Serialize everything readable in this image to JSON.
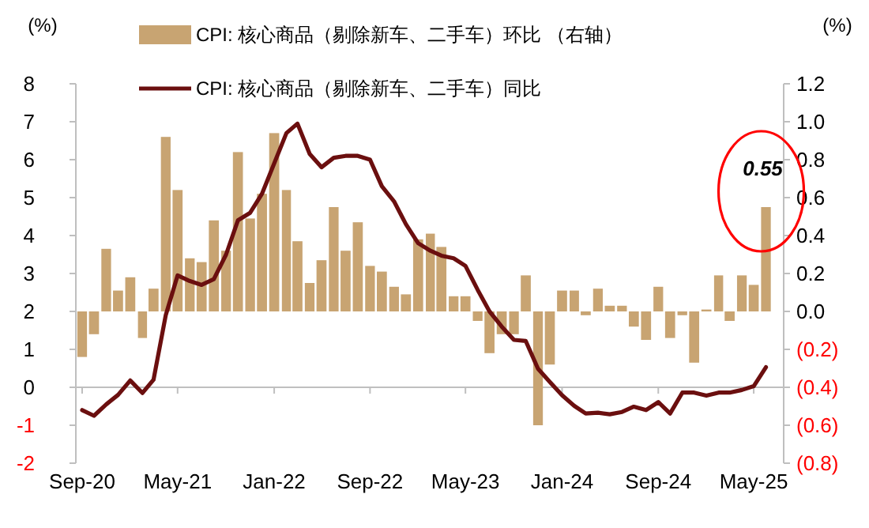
{
  "chart_data": {
    "type": "bar",
    "x": [
      "2020-09",
      "2020-10",
      "2020-11",
      "2020-12",
      "2021-01",
      "2021-02",
      "2021-03",
      "2021-04",
      "2021-05",
      "2021-06",
      "2021-07",
      "2021-08",
      "2021-09",
      "2021-10",
      "2021-11",
      "2021-12",
      "2022-01",
      "2022-02",
      "2022-03",
      "2022-04",
      "2022-05",
      "2022-06",
      "2022-07",
      "2022-08",
      "2022-09",
      "2022-10",
      "2022-11",
      "2022-12",
      "2023-01",
      "2023-02",
      "2023-03",
      "2023-04",
      "2023-05",
      "2023-06",
      "2023-07",
      "2023-08",
      "2023-09",
      "2023-10",
      "2023-11",
      "2023-12",
      "2024-01",
      "2024-02",
      "2024-03",
      "2024-04",
      "2024-05",
      "2024-06",
      "2024-07",
      "2024-08",
      "2024-09",
      "2024-10",
      "2024-11",
      "2024-12",
      "2025-01",
      "2025-02",
      "2025-03",
      "2025-04",
      "2025-05",
      "2025-06"
    ],
    "series": [
      {
        "name": "CPI: 核心商品（剔除新车、二手车）环比 （右轴）",
        "axis": "y2",
        "color": "#c8a472",
        "values": [
          -0.24,
          -0.12,
          0.33,
          0.11,
          0.18,
          -0.14,
          0.12,
          0.92,
          0.64,
          0.28,
          0.26,
          0.48,
          0.32,
          0.84,
          0.49,
          0.62,
          0.94,
          0.64,
          0.37,
          0.15,
          0.27,
          0.55,
          0.32,
          0.47,
          0.24,
          0.21,
          0.13,
          0.09,
          0.38,
          0.41,
          0.34,
          0.08,
          0.08,
          -0.05,
          -0.22,
          -0.12,
          -0.12,
          0.19,
          -0.6,
          -0.28,
          0.11,
          0.11,
          -0.02,
          0.12,
          0.03,
          0.03,
          -0.08,
          -0.15,
          0.13,
          -0.14,
          -0.02,
          -0.27,
          0.01,
          0.19,
          -0.05,
          0.19,
          0.14,
          0.55
        ]
      },
      {
        "name": "CPI: 核心商品（剔除新车、二手车）同比",
        "type": "line",
        "color": "#6b0f0f",
        "values": [
          -0.6,
          -0.75,
          -0.45,
          -0.2,
          0.18,
          -0.15,
          0.2,
          1.9,
          2.95,
          2.8,
          2.7,
          2.85,
          3.5,
          4.4,
          4.6,
          5.1,
          5.9,
          6.7,
          6.95,
          6.15,
          5.8,
          6.05,
          6.1,
          6.1,
          6.0,
          5.3,
          4.9,
          4.3,
          3.8,
          3.6,
          3.47,
          3.4,
          3.2,
          2.57,
          2.0,
          1.6,
          1.25,
          1.22,
          0.49,
          0.14,
          -0.21,
          -0.49,
          -0.69,
          -0.67,
          -0.71,
          -0.65,
          -0.51,
          -0.6,
          -0.39,
          -0.69,
          -0.14,
          -0.14,
          -0.22,
          -0.14,
          -0.14,
          -0.07,
          0.03,
          0.53
        ]
      }
    ],
    "xlim": [
      "2020-08-16",
      "2025-07-16"
    ],
    "ref_lines": [
      {
        "axis": "y",
        "value": 0,
        "color": "#bfbfbf"
      }
    ],
    "xticks": [
      {
        "value": "2020-09",
        "label": "Sep-20"
      },
      {
        "value": "2021-05",
        "label": "May-21"
      },
      {
        "value": "2022-01",
        "label": "Jan-22"
      },
      {
        "value": "2022-09",
        "label": "Sep-22"
      },
      {
        "value": "2023-05",
        "label": "May-23"
      },
      {
        "value": "2024-01",
        "label": "Jan-24"
      },
      {
        "value": "2024-09",
        "label": "Sep-24"
      },
      {
        "value": "2025-05",
        "label": "May-25"
      }
    ],
    "ylim": [
      -2,
      8
    ],
    "yticks": [
      -2,
      -1,
      0,
      1,
      2,
      3,
      4,
      5,
      6,
      7,
      8
    ],
    "y2lim": [
      -0.8,
      1.2
    ],
    "y2ticks": [
      {
        "value": -0.8,
        "label": "(0.8)"
      },
      {
        "value": -0.6,
        "label": "(0.6)"
      },
      {
        "value": -0.4,
        "label": "(0.4)"
      },
      {
        "value": -0.2,
        "label": "(0.2)"
      },
      {
        "value": 0,
        "label": "0.0"
      },
      {
        "value": 0.2,
        "label": "0.2"
      },
      {
        "value": 0.4,
        "label": "0.4"
      },
      {
        "value": 0.6,
        "label": "0.6"
      },
      {
        "value": 0.8,
        "label": "0.8"
      },
      {
        "value": 1.0,
        "label": "1.0"
      },
      {
        "value": 1.2,
        "label": "1.2"
      }
    ],
    "ylabel": "(%)",
    "y2label": "(%)",
    "annotations": [
      "0.55"
    ],
    "legend": "top",
    "grid": false
  }
}
